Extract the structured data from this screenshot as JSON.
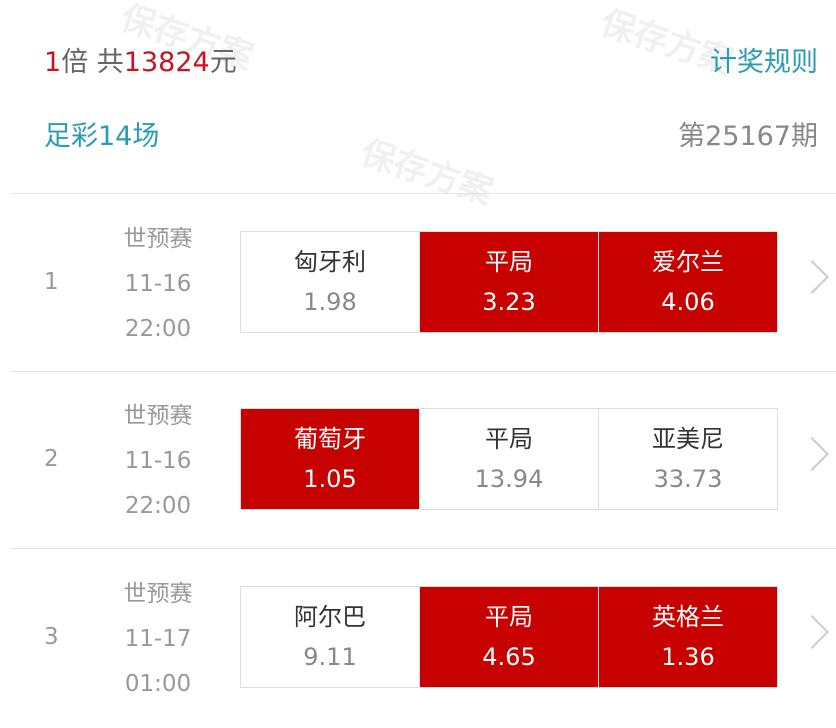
{
  "watermark": "保存方案",
  "header": {
    "multiple": "1",
    "multiple_unit": "倍 共",
    "total": "13824",
    "currency": "元",
    "rules_link": "计奖规则"
  },
  "info": {
    "lottery": "足彩14场",
    "issue": "第25167期"
  },
  "colors": {
    "accent": "#c70000",
    "link": "#2a9bb5"
  },
  "matches": [
    {
      "no": "1",
      "league": "世预赛",
      "date": "11-16",
      "time": "22:00",
      "options": [
        {
          "label": "匈牙利",
          "odds": "1.98",
          "selected": false
        },
        {
          "label": "平局",
          "odds": "3.23",
          "selected": true
        },
        {
          "label": "爱尔兰",
          "odds": "4.06",
          "selected": true
        }
      ]
    },
    {
      "no": "2",
      "league": "世预赛",
      "date": "11-16",
      "time": "22:00",
      "options": [
        {
          "label": "葡萄牙",
          "odds": "1.05",
          "selected": true
        },
        {
          "label": "平局",
          "odds": "13.94",
          "selected": false
        },
        {
          "label": "亚美尼",
          "odds": "33.73",
          "selected": false
        }
      ]
    },
    {
      "no": "3",
      "league": "世预赛",
      "date": "11-17",
      "time": "01:00",
      "options": [
        {
          "label": "阿尔巴",
          "odds": "9.11",
          "selected": false
        },
        {
          "label": "平局",
          "odds": "4.65",
          "selected": true
        },
        {
          "label": "英格兰",
          "odds": "1.36",
          "selected": true
        }
      ]
    }
  ]
}
